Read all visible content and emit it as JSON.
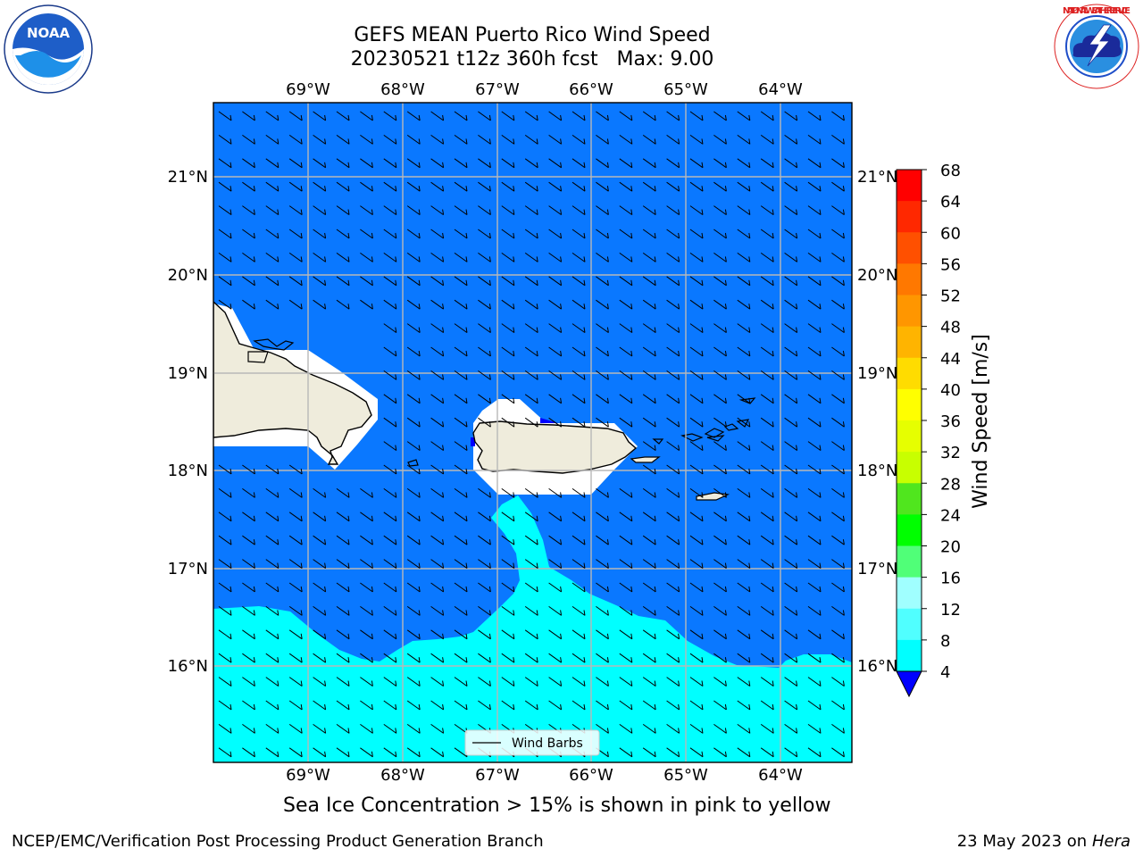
{
  "header": {
    "title_line1": "GEFS MEAN Puerto Rico Wind Speed",
    "title_line2": "20230521 t12z 360h fcst   Max: 9.00"
  },
  "map": {
    "lon_labels": [
      "69°W",
      "68°W",
      "67°W",
      "66°W",
      "65°W",
      "64°W"
    ],
    "lat_labels": [
      "21°N",
      "20°N",
      "19°N",
      "18°N",
      "17°N",
      "16°N"
    ],
    "ocean_color": "#0a78ff",
    "cyan_color": "#00ffff",
    "land_color": "#efecdc",
    "legend_label": "Wind Barbs"
  },
  "colorbar": {
    "label": "Wind Speed [m/s]",
    "ticks": [
      "68",
      "64",
      "60",
      "56",
      "52",
      "48",
      "44",
      "40",
      "36",
      "32",
      "28",
      "24",
      "20",
      "16",
      "12",
      "8",
      "4"
    ],
    "colors": [
      "#ff0000",
      "#ff2800",
      "#ff5000",
      "#ff7800",
      "#ff9600",
      "#ffb400",
      "#ffdc00",
      "#ffff00",
      "#e6ff00",
      "#c8ff00",
      "#50e61e",
      "#00ff00",
      "#50ff78",
      "#a0ffff",
      "#50ffff",
      "#00ffff",
      "#0a78ff"
    ],
    "under_color": "#0000ff"
  },
  "logos": {
    "noaa_text": "NOAA",
    "nws_text": "NATIONAL WEATHER SERVICE"
  },
  "subtitle": "Sea Ice Concentration > 15% is shown in pink to yellow",
  "footer": {
    "left": "NCEP/EMC/Verification Post Processing Product Generation Branch",
    "right_prefix": "23 May 2023 on",
    "right_host": "Hera"
  }
}
